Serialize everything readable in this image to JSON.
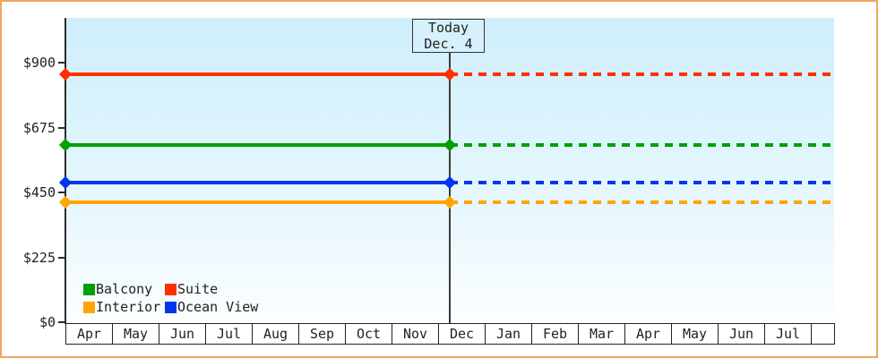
{
  "page": {
    "border_color": "#f0a65f",
    "background_color": "#ffffff",
    "plot_bg_top": "#cfeefb",
    "plot_bg_bottom": "#fbfeff",
    "axis_color": "#2b2b2b"
  },
  "legend": {
    "items": [
      {
        "label": "Balcony",
        "color": "#00a000"
      },
      {
        "label": "Suite",
        "color": "#fe2f00"
      },
      {
        "label": "Interior",
        "color": "#ffa500"
      },
      {
        "label": "Ocean View",
        "color": "#0236ee"
      }
    ]
  },
  "chart_data": {
    "type": "line",
    "title": "",
    "xlabel": "",
    "ylabel": "",
    "categories": [
      "Apr",
      "May",
      "Jun",
      "Jul",
      "Aug",
      "Sep",
      "Oct",
      "Nov",
      "Dec",
      "Jan",
      "Feb",
      "Mar",
      "Apr",
      "May",
      "Jun",
      "Jul"
    ],
    "series": [
      {
        "name": "Suite",
        "color": "#fe2f00",
        "value": 860
      },
      {
        "name": "Balcony",
        "color": "#00a000",
        "value": 615
      },
      {
        "name": "Ocean View",
        "color": "#0236ee",
        "value": 485
      },
      {
        "name": "Interior",
        "color": "#ffa500",
        "value": 415
      }
    ],
    "yticks": [
      {
        "value": 0,
        "label": "$0"
      },
      {
        "value": 225,
        "label": "$225"
      },
      {
        "value": 450,
        "label": "$450"
      },
      {
        "value": 675,
        "label": "$675"
      },
      {
        "value": 900,
        "label": "$900"
      }
    ],
    "ylim": [
      0,
      1055
    ],
    "grid": false,
    "legend_position": "inside-bottom-left",
    "today": {
      "label": "Today",
      "date": "Dec. 4",
      "month_index": 8,
      "day": 4
    },
    "style_note": "Flat price lines: solid before today marker, dashed projection after; diamond markers at axis and at today line"
  }
}
